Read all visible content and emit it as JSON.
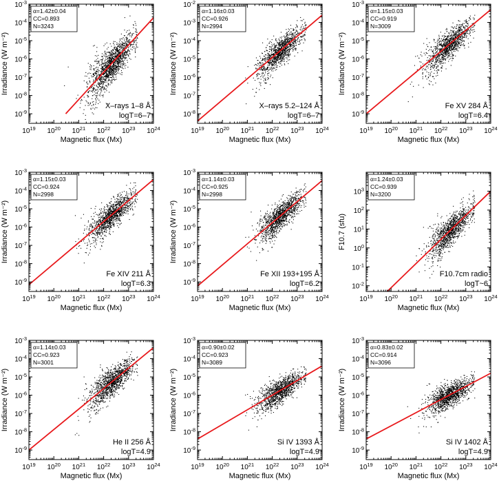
{
  "figure": {
    "x_axis": {
      "label": "Magnetic flux (Mx)",
      "scale": "log",
      "range": [
        1e+19,
        1e+24
      ],
      "tick_labels": [
        {
          "base": "10",
          "exp": "19"
        },
        {
          "base": "10",
          "exp": "20"
        },
        {
          "base": "10",
          "exp": "21"
        },
        {
          "base": "10",
          "exp": "22"
        },
        {
          "base": "10",
          "exp": "23"
        },
        {
          "base": "10",
          "exp": "24"
        }
      ]
    },
    "fit_line_color": "#e8191c",
    "point_color": "#000000"
  },
  "chart_data": [
    {
      "type": "scatter",
      "title": "",
      "xlabel": "Magnetic flux (Mx)",
      "ylabel": "Irradiance (W m⁻²)",
      "yscale": "log",
      "ylim": [
        3e-10,
        0.001
      ],
      "y_tick_exponents": [
        "-9",
        "-8",
        "-7",
        "-6",
        "-5",
        "-4",
        "-3"
      ],
      "y_tick_base": "10",
      "stats": {
        "alpha": "α=1.42±0.04",
        "cc": "CC=0.893",
        "n": "N=3243"
      },
      "label_line1": "X–rays 1–8 Å",
      "label_line2": "logT=6–7",
      "fit": {
        "points": [
          {
            "x": 3e+20,
            "y": 1e-09
          },
          {
            "x": 1e+24,
            "y": 0.00018
          }
        ]
      },
      "cloud": {
        "x_center_log": 22.3,
        "y_center_log": -6.5,
        "x_spread": 0.45,
        "y_scatter": 0.45,
        "n_shown": 1500
      }
    },
    {
      "type": "scatter",
      "title": "",
      "xlabel": "Magnetic flux (Mx)",
      "ylabel": "Irradiance (W m⁻²)",
      "yscale": "log",
      "ylim": [
        3e-09,
        0.01
      ],
      "y_tick_exponents": [
        "-8",
        "-7",
        "-6",
        "-5",
        "-4",
        "-3",
        "-2"
      ],
      "y_tick_base": "10",
      "stats": {
        "alpha": "α=1.16±0.03",
        "cc": "CC=0.926",
        "n": "N=2994"
      },
      "label_line1": "X–rays 5.2–124 Å",
      "label_line2": "logT=6–7",
      "fit": {
        "points": [
          {
            "x": 1e+19,
            "y": 4e-09
          },
          {
            "x": 1e+24,
            "y": 0.0025
          }
        ]
      },
      "cloud": {
        "x_center_log": 22.3,
        "y_center_log": -4.8,
        "x_spread": 0.45,
        "y_scatter": 0.35,
        "n_shown": 1200
      }
    },
    {
      "type": "scatter",
      "title": "",
      "xlabel": "Magnetic flux (Mx)",
      "ylabel": "Irradiance (W m⁻²)",
      "yscale": "log",
      "ylim": [
        3e-10,
        0.001
      ],
      "y_tick_exponents": [
        "-9",
        "-8",
        "-7",
        "-6",
        "-5",
        "-4",
        "-3"
      ],
      "y_tick_base": "10",
      "stats": {
        "alpha": "α=1.15±0.03",
        "cc": "CC=0.919",
        "n": "N=3009"
      },
      "label_line1": "Fe XV 284 Å",
      "label_line2": "logT=6.4",
      "fit": {
        "points": [
          {
            "x": 1e+19,
            "y": 1e-09
          },
          {
            "x": 1e+24,
            "y": 0.0005
          }
        ]
      },
      "cloud": {
        "x_center_log": 22.3,
        "y_center_log": -5.4,
        "x_spread": 0.45,
        "y_scatter": 0.35,
        "n_shown": 1200
      }
    },
    {
      "type": "scatter",
      "title": "",
      "xlabel": "Magnetic flux (Mx)",
      "ylabel": "Irradiance (W m⁻²)",
      "yscale": "log",
      "ylim": [
        3e-10,
        0.001
      ],
      "y_tick_exponents": [
        "-9",
        "-8",
        "-7",
        "-6",
        "-5",
        "-4",
        "-3"
      ],
      "y_tick_base": "10",
      "stats": {
        "alpha": "α=1.15±0.03",
        "cc": "CC=0.924",
        "n": "N=2998"
      },
      "label_line1": "Fe XIV 211 Å",
      "label_line2": "logT=6.3",
      "fit": {
        "points": [
          {
            "x": 1e+19,
            "y": 7e-10
          },
          {
            "x": 1e+24,
            "y": 0.0004
          }
        ]
      },
      "cloud": {
        "x_center_log": 22.3,
        "y_center_log": -5.5,
        "x_spread": 0.45,
        "y_scatter": 0.35,
        "n_shown": 1200
      }
    },
    {
      "type": "scatter",
      "title": "",
      "xlabel": "Magnetic flux (Mx)",
      "ylabel": "Irradiance (W m⁻²)",
      "yscale": "log",
      "ylim": [
        3e-10,
        0.001
      ],
      "y_tick_exponents": [
        "-9",
        "-8",
        "-7",
        "-6",
        "-5",
        "-4",
        "-3"
      ],
      "y_tick_base": "10",
      "stats": {
        "alpha": "α=1.14±0.03",
        "cc": "CC=0.925",
        "n": "N=2998"
      },
      "label_line1": "Fe XII 193+195 Å",
      "label_line2": "logT=6.2",
      "fit": {
        "points": [
          {
            "x": 1e+19,
            "y": 6e-10
          },
          {
            "x": 1e+24,
            "y": 0.00035
          }
        ]
      },
      "cloud": {
        "x_center_log": 22.3,
        "y_center_log": -5.5,
        "x_spread": 0.45,
        "y_scatter": 0.35,
        "n_shown": 1200
      }
    },
    {
      "type": "scatter",
      "title": "",
      "xlabel": "Magnetic flux (Mx)",
      "ylabel": "F10.7 (sfu)",
      "yscale": "log",
      "ylim": [
        0.005,
        10000.0
      ],
      "y_tick_exponents": [
        "-2",
        "-1",
        "0",
        "1",
        "2",
        "3"
      ],
      "y_tick_base": "10",
      "stats": {
        "alpha": "α=1.24±0.03",
        "cc": "CC=0.939",
        "n": "N=3200"
      },
      "label_line1": "F10.7cm radio",
      "label_line2": "logT~6",
      "fit": {
        "points": [
          {
            "x": 7e+19,
            "y": 0.005
          },
          {
            "x": 1e+24,
            "y": 1000.0
          }
        ]
      },
      "cloud": {
        "x_center_log": 22.4,
        "y_center_log": 1.2,
        "x_spread": 0.45,
        "y_scatter": 0.35,
        "n_shown": 1200
      }
    },
    {
      "type": "scatter",
      "title": "",
      "xlabel": "Magnetic flux (Mx)",
      "ylabel": "Irradiance (W m⁻²)",
      "yscale": "log",
      "ylim": [
        3e-10,
        0.001
      ],
      "y_tick_exponents": [
        "-9",
        "-8",
        "-7",
        "-6",
        "-5",
        "-4",
        "-3"
      ],
      "y_tick_base": "10",
      "stats": {
        "alpha": "α=1.14±0.03",
        "cc": "CC=0.923",
        "n": "N=3001"
      },
      "label_line1": "He II 256 Å",
      "label_line2": "logT=4.9",
      "fit": {
        "points": [
          {
            "x": 1e+19,
            "y": 1e-09
          },
          {
            "x": 1e+24,
            "y": 0.0004
          }
        ]
      },
      "cloud": {
        "x_center_log": 22.3,
        "y_center_log": -5.4,
        "x_spread": 0.45,
        "y_scatter": 0.35,
        "n_shown": 1200
      }
    },
    {
      "type": "scatter",
      "title": "",
      "xlabel": "Magnetic flux (Mx)",
      "ylabel": "Irradiance (W m⁻²)",
      "yscale": "log",
      "ylim": [
        3e-10,
        0.001
      ],
      "y_tick_exponents": [
        "-9",
        "-8",
        "-7",
        "-6",
        "-5",
        "-4",
        "-3"
      ],
      "y_tick_base": "10",
      "stats": {
        "alpha": "α=0.90±0.02",
        "cc": "CC=0.923",
        "n": "N=3089"
      },
      "label_line1": "Si IV 1393 Å",
      "label_line2": "logT=4.9",
      "fit": {
        "points": [
          {
            "x": 1e+19,
            "y": 4e-09
          },
          {
            "x": 1e+24,
            "y": 4e-05
          }
        ]
      },
      "cloud": {
        "x_center_log": 22.3,
        "y_center_log": -5.8,
        "x_spread": 0.45,
        "y_scatter": 0.3,
        "n_shown": 1200
      }
    },
    {
      "type": "scatter",
      "title": "",
      "xlabel": "Magnetic flux (Mx)",
      "ylabel": "Irradiance (W m⁻²)",
      "yscale": "log",
      "ylim": [
        3e-10,
        0.001
      ],
      "y_tick_exponents": [
        "-9",
        "-8",
        "-7",
        "-6",
        "-5",
        "-4",
        "-3"
      ],
      "y_tick_base": "10",
      "stats": {
        "alpha": "α=0.83±0.02",
        "cc": "CC=0.914",
        "n": "N=3096"
      },
      "label_line1": "Si IV 1402 Å",
      "label_line2": "logT=4.9",
      "fit": {
        "points": [
          {
            "x": 1e+19,
            "y": 4e-09
          },
          {
            "x": 1e+24,
            "y": 1.6e-05
          }
        ]
      },
      "cloud": {
        "x_center_log": 22.3,
        "y_center_log": -6.0,
        "x_spread": 0.45,
        "y_scatter": 0.3,
        "n_shown": 1200
      }
    }
  ]
}
